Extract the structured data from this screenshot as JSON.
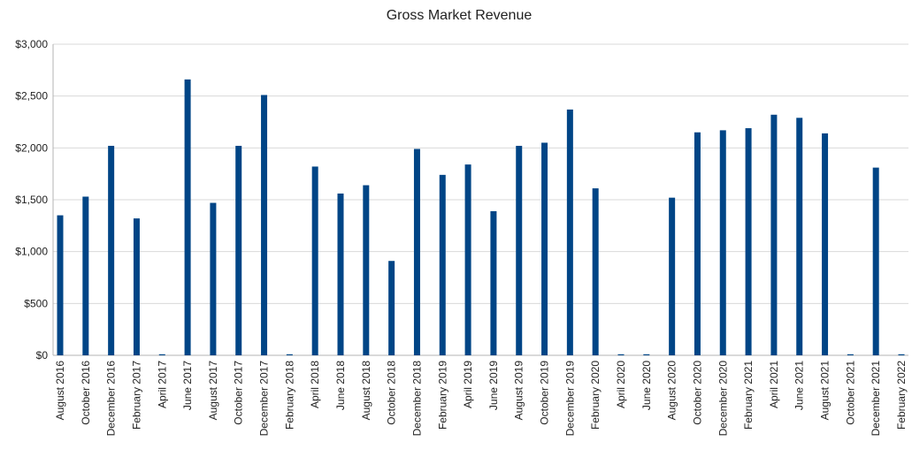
{
  "chart_data": {
    "type": "bar",
    "title": "Gross Market Revenue",
    "xlabel": "",
    "ylabel": "",
    "ylim": [
      0,
      3000
    ],
    "yticks": [
      "$0",
      "$500",
      "$1,000",
      "$1,500",
      "$2,000",
      "$2,500",
      "$3,000"
    ],
    "grid": true,
    "legend": "none",
    "bar_color": "#004586",
    "categories": [
      "August 2016",
      "October 2016",
      "December 2016",
      "February 2017",
      "April 2017",
      "June 2017",
      "August 2017",
      "October 2017",
      "December 2017",
      "February 2018",
      "April 2018",
      "June 2018",
      "August 2018",
      "October 2018",
      "December 2018",
      "February 2019",
      "April 2019",
      "June 2019",
      "August 2019",
      "October 2019",
      "December 2019",
      "February 2020",
      "April 2020",
      "June 2020",
      "August 2020",
      "October 2020",
      "December 2020",
      "February 2021",
      "April 2021",
      "June 2021",
      "August 2021",
      "October 2021",
      "December 2021",
      "February 2022"
    ],
    "values": [
      1350,
      1530,
      2020,
      1320,
      10,
      2660,
      1470,
      2020,
      2510,
      10,
      1820,
      1560,
      1640,
      910,
      1990,
      1740,
      1840,
      1390,
      2020,
      2050,
      2370,
      1610,
      10,
      10,
      1520,
      2150,
      2170,
      2190,
      2320,
      2290,
      2140,
      10,
      1810,
      10
    ]
  }
}
